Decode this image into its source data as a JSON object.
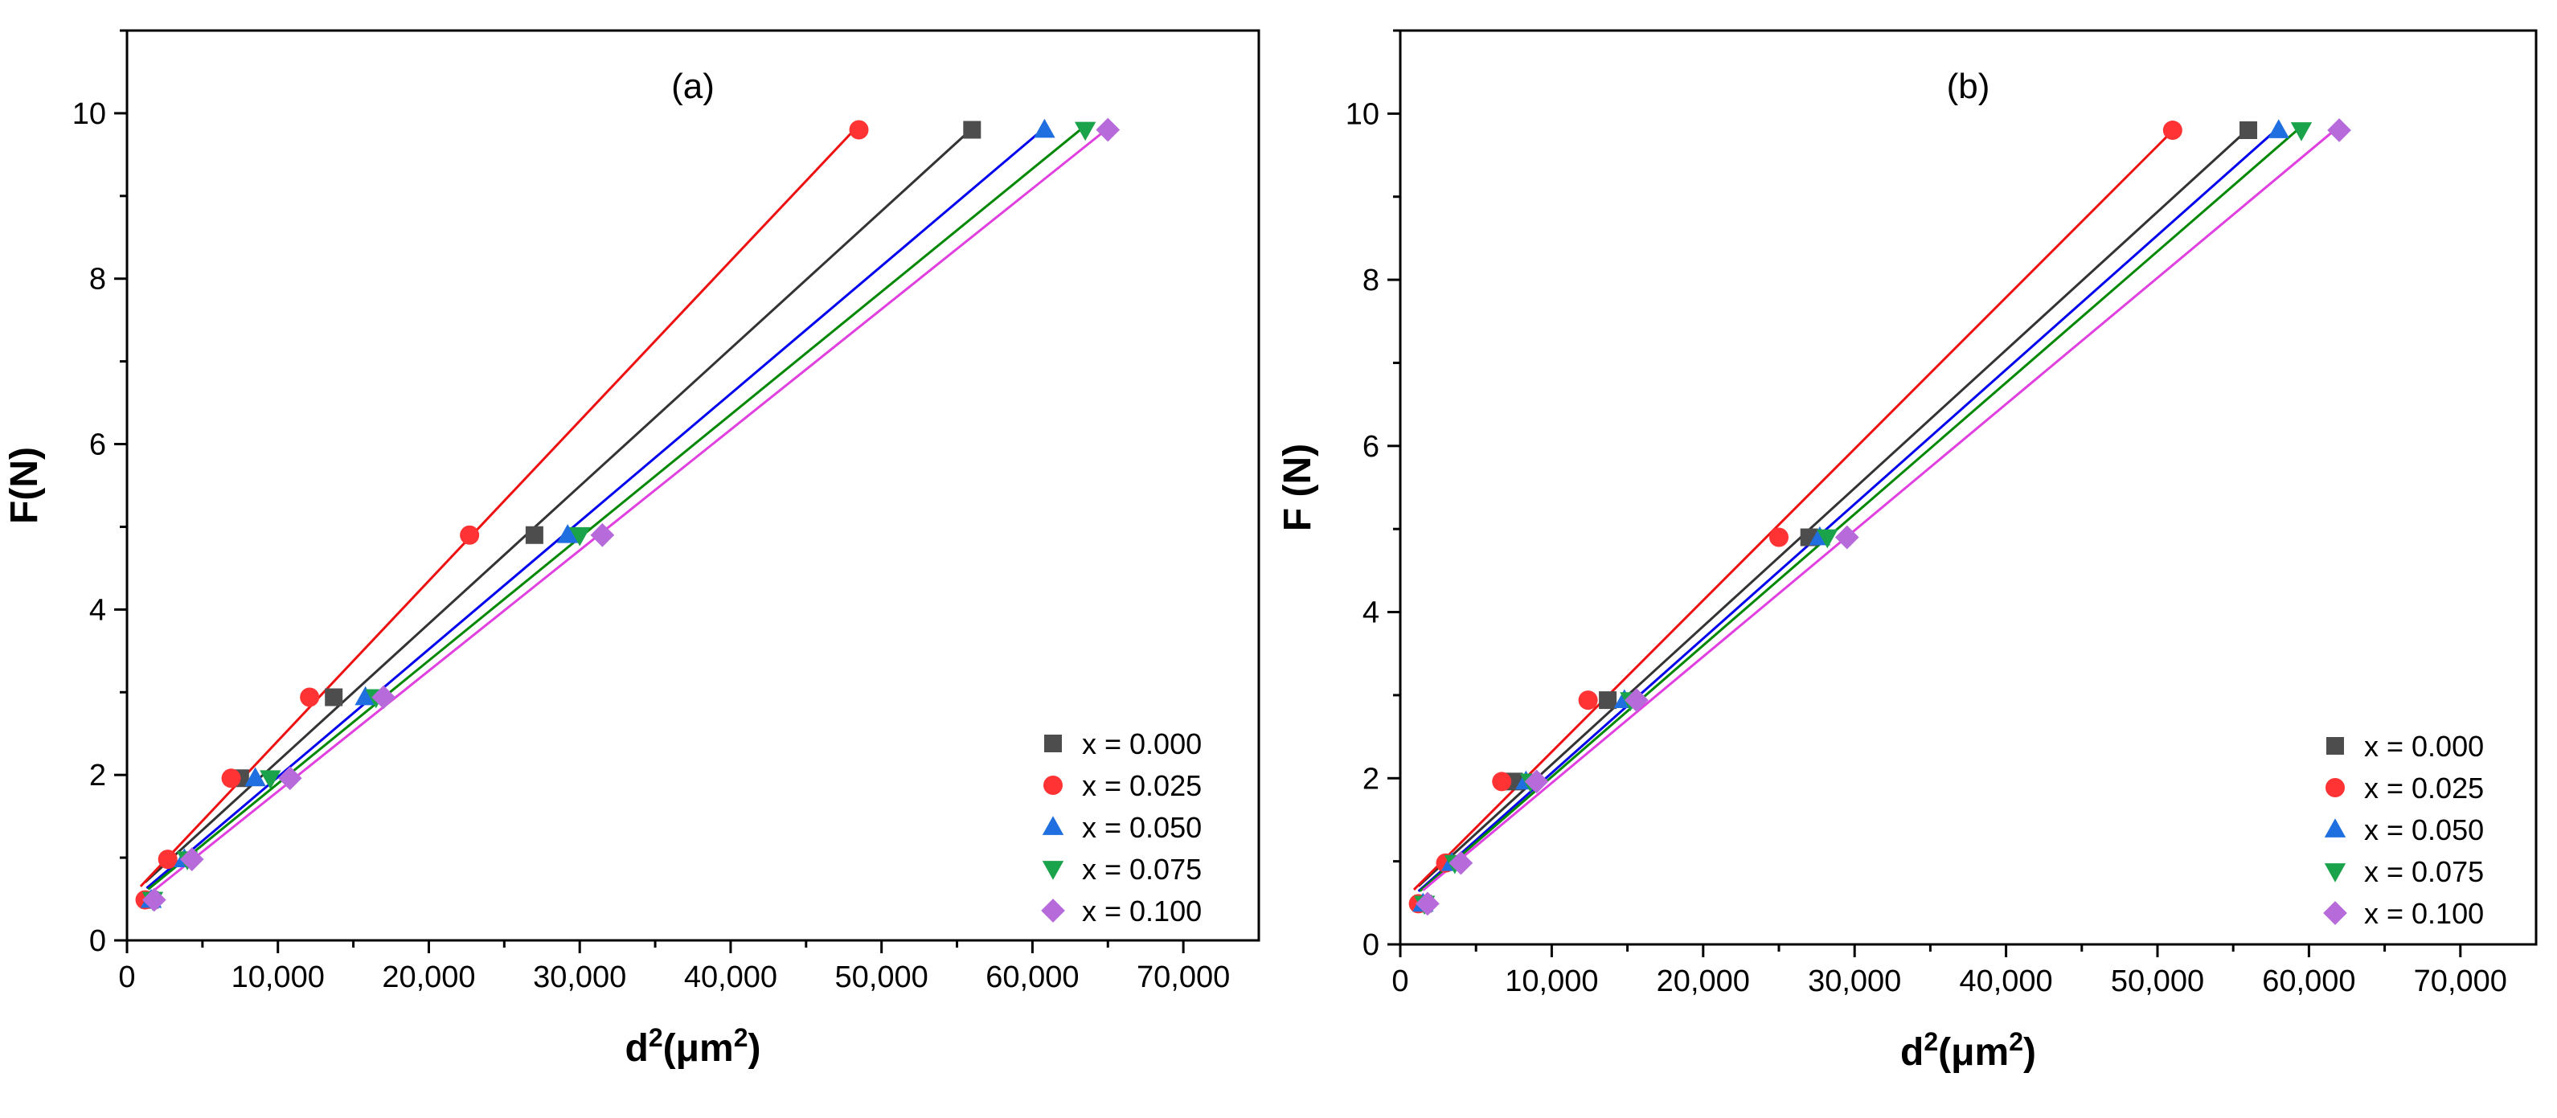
{
  "chart_data": [
    {
      "type": "scatter",
      "panel_label": "(a)",
      "xlabel_base": "d",
      "xlabel_sup": "2",
      "xlabel_unit": "(μm",
      "xlabel_unit_sup": "2",
      "xlabel_close": ")",
      "ylabel": "F(N)",
      "xlim": [
        0,
        75000
      ],
      "ylim": [
        0,
        11
      ],
      "xticks": [
        "0",
        "10,000",
        "20,000",
        "30,000",
        "40,000",
        "50,000",
        "60,000",
        "70,000"
      ],
      "yticks": [
        "0",
        "2",
        "4",
        "6",
        "8",
        "10"
      ],
      "legend_position": "bottom-right",
      "series": [
        {
          "name": "x = 0.000",
          "color": "#4d4d4d",
          "marker": "square",
          "x": [
            1500,
            7500,
            13700,
            27000,
            56000
          ],
          "y": [
            0.49,
            1.96,
            2.94,
            4.9,
            9.8
          ]
        },
        {
          "name": "x = 0.025",
          "color": "#ff3333",
          "marker": "circle",
          "x": [
            1200,
            2700,
            6900,
            12100,
            22700,
            48500
          ],
          "y": [
            0.49,
            0.98,
            1.96,
            2.94,
            4.9,
            9.8
          ]
        },
        {
          "name": "x = 0.050",
          "color": "#1f6fe0",
          "marker": "triangle-up",
          "x": [
            1600,
            3800,
            8500,
            15800,
            29200,
            60800
          ],
          "y": [
            0.49,
            0.98,
            1.96,
            2.94,
            4.9,
            9.8
          ]
        },
        {
          "name": "x = 0.075",
          "color": "#1aa34a",
          "marker": "triangle-down",
          "x": [
            1700,
            4000,
            9500,
            16500,
            30000,
            63500
          ],
          "y": [
            0.49,
            0.98,
            1.96,
            2.94,
            4.9,
            9.8
          ]
        },
        {
          "name": "x = 0.100",
          "color": "#b76bdb",
          "marker": "diamond",
          "x": [
            1800,
            4300,
            10800,
            17000,
            31500,
            65000
          ],
          "y": [
            0.49,
            0.98,
            1.96,
            2.94,
            4.9,
            9.8
          ]
        }
      ]
    },
    {
      "type": "scatter",
      "panel_label": "(b)",
      "xlabel_base": "d",
      "xlabel_sup": "2",
      "xlabel_unit": "(μm",
      "xlabel_unit_sup": "2",
      "xlabel_close": ")",
      "ylabel": "F (N)",
      "xlim": [
        0,
        75000
      ],
      "ylim": [
        0,
        11
      ],
      "xticks": [
        "0",
        "10,000",
        "20,000",
        "30,000",
        "40,000",
        "50,000",
        "60,000",
        "70,000"
      ],
      "yticks": [
        "0",
        "2",
        "4",
        "6",
        "8",
        "10"
      ],
      "legend_position": "bottom-right",
      "series": [
        {
          "name": "x = 0.000",
          "color": "#4d4d4d",
          "marker": "square",
          "x": [
            1500,
            7500,
            13700,
            27000,
            56000
          ],
          "y": [
            0.49,
            1.96,
            2.94,
            4.9,
            9.8
          ]
        },
        {
          "name": "x = 0.025",
          "color": "#ff3333",
          "marker": "circle",
          "x": [
            1200,
            3000,
            6700,
            12400,
            25000,
            51000
          ],
          "y": [
            0.49,
            0.98,
            1.96,
            2.94,
            4.9,
            9.8
          ]
        },
        {
          "name": "x = 0.050",
          "color": "#1f6fe0",
          "marker": "triangle-up",
          "x": [
            1500,
            3400,
            8300,
            14800,
            27700,
            58000
          ],
          "y": [
            0.49,
            0.98,
            1.96,
            2.94,
            4.9,
            9.8
          ]
        },
        {
          "name": "x = 0.075",
          "color": "#1aa34a",
          "marker": "triangle-down",
          "x": [
            1600,
            3600,
            8600,
            15200,
            28200,
            59500
          ],
          "y": [
            0.49,
            0.98,
            1.96,
            2.94,
            4.9,
            9.8
          ]
        },
        {
          "name": "x = 0.100",
          "color": "#b76bdb",
          "marker": "diamond",
          "x": [
            1800,
            4000,
            9000,
            15600,
            29500,
            62000
          ],
          "y": [
            0.49,
            0.98,
            1.96,
            2.94,
            4.9,
            9.8
          ]
        }
      ]
    }
  ]
}
